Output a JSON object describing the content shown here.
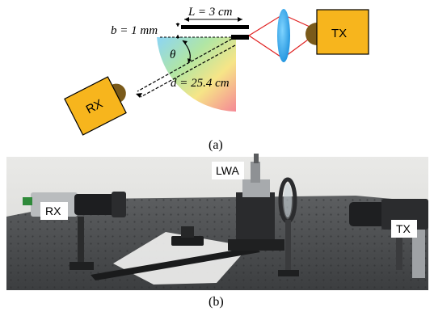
{
  "figure_a": {
    "caption": "(a)",
    "length_label": "L = 3 cm",
    "gap_label": "b = 1 mm",
    "angle_label": "θ",
    "distance_label": "d = 25.4 cm",
    "rx_label": "RX",
    "tx_label": "TX"
  },
  "figure_b": {
    "caption": "(b)",
    "rx_label": "RX",
    "lwa_label": "LWA",
    "tx_label": "TX"
  },
  "colors": {
    "device_box": "#f7b51d",
    "horn": "#7a5a1a",
    "beam": "#e02020",
    "lens": "#2aa0e8"
  }
}
